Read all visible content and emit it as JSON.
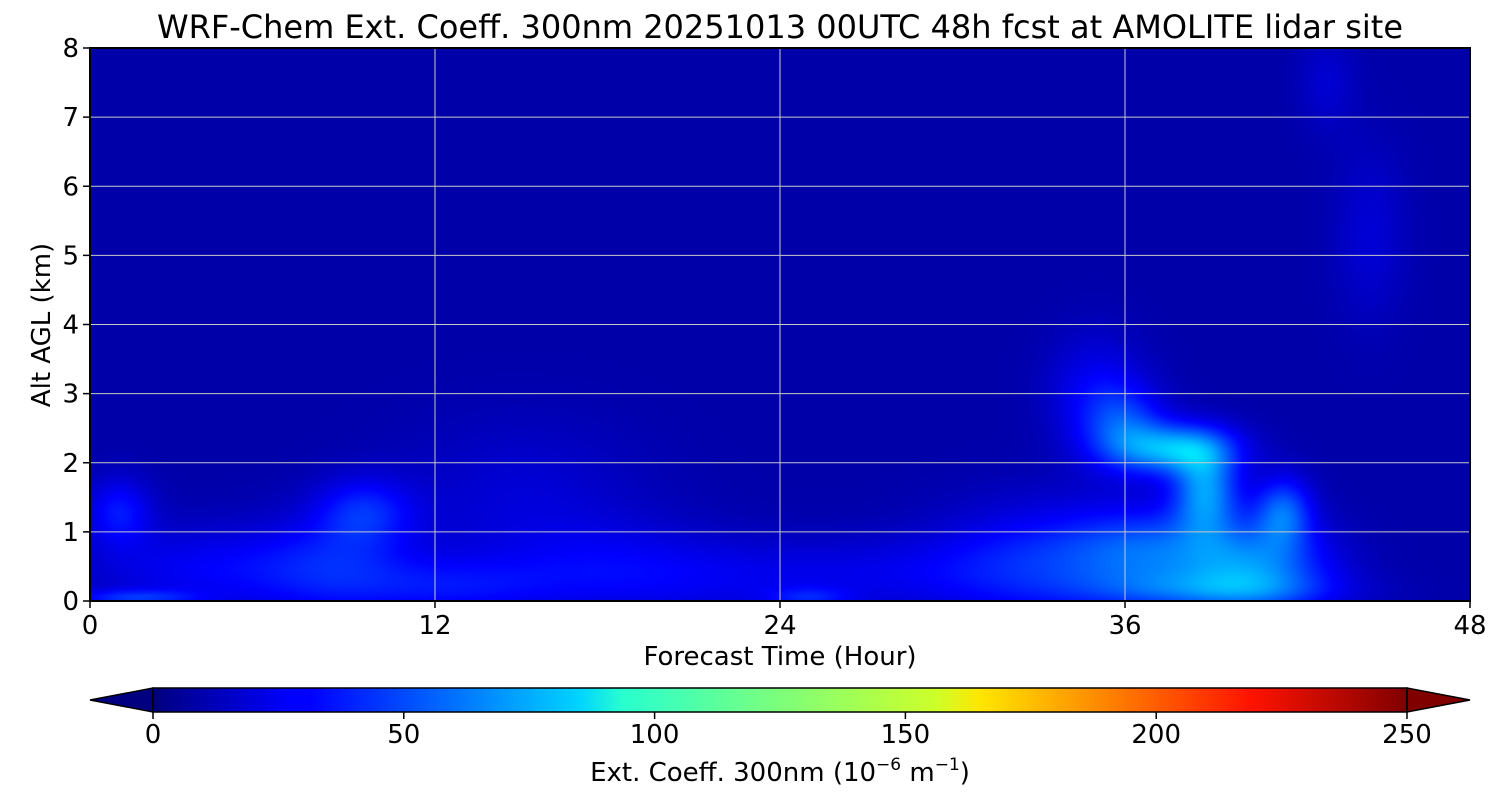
{
  "chart_data": {
    "type": "heatmap",
    "title": "WRF-Chem Ext. Coeff. 300nm  20251013 00UTC 48h fcst at AMOLITE lidar site",
    "xlabel": "Forecast Time (Hour)",
    "ylabel": "Alt AGL (km)",
    "xlim": [
      0,
      48
    ],
    "ylim": [
      0,
      8
    ],
    "xticks": [
      "0",
      "12",
      "24",
      "36",
      "48"
    ],
    "yticks": [
      "0",
      "1",
      "2",
      "3",
      "4",
      "5",
      "6",
      "7",
      "8"
    ],
    "grid": true,
    "colormap": "jet",
    "colorbar": {
      "label_main": "Ext. Coeff. 300nm  (10",
      "label_exp1": "−6",
      "label_mid": " m",
      "label_exp2": "−1",
      "label_end": ")",
      "min": 0,
      "max": 250,
      "ticks": [
        "0",
        "50",
        "100",
        "150",
        "200",
        "250"
      ],
      "extend": "both",
      "under_color": "#000080",
      "over_color": "#800000"
    },
    "background_value": 10,
    "features": [
      {
        "x": 1.0,
        "y": 1.3,
        "sx": 0.8,
        "sy": 0.35,
        "value": 28
      },
      {
        "x": 1.5,
        "y": 0.05,
        "sx": 1.5,
        "sy": 0.08,
        "value": 30
      },
      {
        "x": 4.0,
        "y": 0.45,
        "sx": 3.0,
        "sy": 0.45,
        "value": 22
      },
      {
        "x": 9.5,
        "y": 1.3,
        "sx": 1.2,
        "sy": 0.35,
        "value": 30
      },
      {
        "x": 8.5,
        "y": 0.5,
        "sx": 2.0,
        "sy": 0.5,
        "value": 25
      },
      {
        "x": 12.5,
        "y": 0.2,
        "sx": 2.5,
        "sy": 0.3,
        "value": 22
      },
      {
        "x": 15.0,
        "y": 1.5,
        "sx": 3.0,
        "sy": 0.8,
        "value": 14
      },
      {
        "x": 18.0,
        "y": 0.5,
        "sx": 3.0,
        "sy": 0.5,
        "value": 16
      },
      {
        "x": 22.0,
        "y": 0.3,
        "sx": 4.0,
        "sy": 0.4,
        "value": 14
      },
      {
        "x": 25.0,
        "y": 0.05,
        "sx": 1.0,
        "sy": 0.1,
        "value": 22
      },
      {
        "x": 29.0,
        "y": 0.4,
        "sx": 4.0,
        "sy": 0.4,
        "value": 15
      },
      {
        "x": 33.0,
        "y": 0.6,
        "sx": 2.5,
        "sy": 0.6,
        "value": 26
      },
      {
        "x": 35.0,
        "y": 3.0,
        "sx": 1.2,
        "sy": 0.6,
        "value": 22
      },
      {
        "x": 36.0,
        "y": 2.5,
        "sx": 1.0,
        "sy": 0.4,
        "value": 35
      },
      {
        "x": 37.8,
        "y": 2.2,
        "sx": 1.4,
        "sy": 0.25,
        "value": 62
      },
      {
        "x": 38.8,
        "y": 1.6,
        "sx": 0.8,
        "sy": 0.45,
        "value": 58
      },
      {
        "x": 36.8,
        "y": 0.7,
        "sx": 2.0,
        "sy": 0.45,
        "value": 40
      },
      {
        "x": 40.5,
        "y": 0.5,
        "sx": 1.8,
        "sy": 0.45,
        "value": 52
      },
      {
        "x": 41.5,
        "y": 1.3,
        "sx": 0.7,
        "sy": 0.35,
        "value": 45
      },
      {
        "x": 39.0,
        "y": 0.15,
        "sx": 3.0,
        "sy": 0.2,
        "value": 30
      },
      {
        "x": 44.5,
        "y": 5.3,
        "sx": 0.9,
        "sy": 0.9,
        "value": 14
      },
      {
        "x": 43.0,
        "y": 7.5,
        "sx": 0.7,
        "sy": 0.5,
        "value": 13
      }
    ]
  }
}
